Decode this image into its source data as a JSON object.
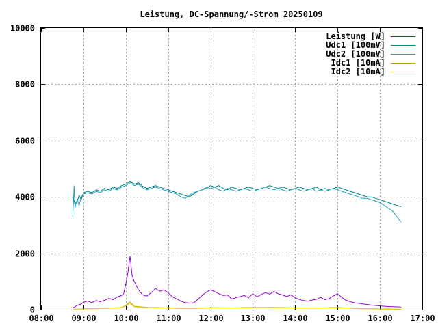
{
  "chart_data": {
    "type": "line",
    "title": "Leistung, DC-Spannung/-Strom 20250109",
    "xlabel": "",
    "ylabel": "",
    "xlim": [
      8.0,
      17.0
    ],
    "ylim": [
      0,
      10000
    ],
    "x_ticks": [
      "08:00",
      "09:00",
      "10:00",
      "11:00",
      "12:00",
      "13:00",
      "14:00",
      "15:00",
      "16:00",
      "17:00"
    ],
    "y_ticks": [
      "0",
      "2000",
      "4000",
      "6000",
      "8000",
      "10000"
    ],
    "grid": true,
    "legend_position": "top-right",
    "series": [
      {
        "name": "Leistung [W]",
        "color": "#9400d3",
        "x": [
          8.75,
          8.85,
          8.95,
          9.0,
          9.1,
          9.2,
          9.3,
          9.4,
          9.5,
          9.6,
          9.7,
          9.8,
          9.9,
          9.95,
          10.0,
          10.05,
          10.1,
          10.15,
          10.2,
          10.3,
          10.4,
          10.5,
          10.6,
          10.7,
          10.8,
          10.9,
          11.0,
          11.1,
          11.2,
          11.3,
          11.4,
          11.5,
          11.6,
          11.7,
          11.8,
          11.9,
          12.0,
          12.1,
          12.2,
          12.3,
          12.4,
          12.5,
          12.6,
          12.7,
          12.8,
          12.9,
          13.0,
          13.1,
          13.2,
          13.3,
          13.4,
          13.5,
          13.6,
          13.7,
          13.8,
          13.9,
          14.0,
          14.1,
          14.2,
          14.3,
          14.4,
          14.5,
          14.6,
          14.7,
          14.8,
          14.9,
          15.0,
          15.1,
          15.2,
          15.3,
          15.4,
          15.5,
          15.6,
          15.7,
          15.8,
          16.0,
          16.2,
          16.5
        ],
        "values": [
          50,
          150,
          200,
          260,
          300,
          250,
          320,
          280,
          330,
          400,
          350,
          450,
          500,
          560,
          900,
          1300,
          1900,
          1200,
          1000,
          700,
          520,
          480,
          600,
          750,
          650,
          700,
          600,
          450,
          380,
          300,
          250,
          230,
          240,
          360,
          500,
          620,
          700,
          640,
          560,
          500,
          520,
          380,
          420,
          460,
          500,
          420,
          560,
          450,
          540,
          600,
          550,
          640,
          560,
          520,
          460,
          520,
          420,
          360,
          320,
          300,
          340,
          360,
          440,
          350,
          390,
          480,
          560,
          430,
          330,
          280,
          240,
          220,
          200,
          180,
          160,
          130,
          110,
          90
        ]
      },
      {
        "name": "Udc1 [100mV]",
        "color": "#008080",
        "x": [
          8.75,
          8.8,
          8.85,
          8.9,
          8.95,
          9.0,
          9.1,
          9.2,
          9.3,
          9.4,
          9.5,
          9.6,
          9.7,
          9.8,
          9.9,
          10.0,
          10.1,
          10.2,
          10.3,
          10.4,
          10.5,
          10.6,
          10.7,
          10.8,
          10.9,
          11.0,
          11.1,
          11.2,
          11.3,
          11.4,
          11.5,
          11.6,
          11.7,
          11.8,
          11.9,
          12.0,
          12.1,
          12.2,
          12.3,
          12.4,
          12.5,
          12.6,
          12.7,
          12.8,
          12.9,
          13.0,
          13.1,
          13.2,
          13.3,
          13.4,
          13.5,
          13.6,
          13.7,
          13.8,
          13.9,
          14.0,
          14.1,
          14.2,
          14.3,
          14.4,
          14.5,
          14.6,
          14.7,
          14.8,
          14.9,
          15.0,
          15.1,
          15.2,
          15.3,
          15.4,
          15.5,
          15.6,
          15.7,
          15.8,
          15.9,
          16.0,
          16.1,
          16.2,
          16.3,
          16.4,
          16.5
        ],
        "values": [
          4000,
          3750,
          3850,
          4050,
          3900,
          4150,
          4200,
          4150,
          4250,
          4200,
          4300,
          4250,
          4350,
          4300,
          4400,
          4450,
          4550,
          4450,
          4500,
          4380,
          4300,
          4350,
          4400,
          4350,
          4300,
          4250,
          4200,
          4150,
          4100,
          4050,
          4000,
          4100,
          4200,
          4250,
          4300,
          4400,
          4350,
          4400,
          4300,
          4250,
          4350,
          4300,
          4250,
          4300,
          4350,
          4300,
          4250,
          4300,
          4350,
          4400,
          4350,
          4300,
          4350,
          4300,
          4250,
          4300,
          4350,
          4300,
          4250,
          4300,
          4350,
          4250,
          4300,
          4250,
          4300,
          4350,
          4300,
          4250,
          4200,
          4150,
          4100,
          4050,
          4000,
          4000,
          3950,
          3900,
          3850,
          3800,
          3750,
          3700,
          3650
        ]
      },
      {
        "name": "Udc2 [100mV]",
        "color": "#1ea0bc",
        "x": [
          8.75,
          8.78,
          8.8,
          8.85,
          8.9,
          8.95,
          9.0,
          9.1,
          9.2,
          9.3,
          9.4,
          9.5,
          9.6,
          9.7,
          9.8,
          9.9,
          10.0,
          10.1,
          10.2,
          10.3,
          10.4,
          10.5,
          10.6,
          10.7,
          10.8,
          10.9,
          11.0,
          11.1,
          11.2,
          11.3,
          11.4,
          11.5,
          11.6,
          11.7,
          11.8,
          11.9,
          12.0,
          12.1,
          12.2,
          12.3,
          12.4,
          12.5,
          12.6,
          12.7,
          12.8,
          12.9,
          13.0,
          13.1,
          13.2,
          13.3,
          13.4,
          13.5,
          13.6,
          13.7,
          13.8,
          13.9,
          14.0,
          14.1,
          14.2,
          14.3,
          14.4,
          14.5,
          14.6,
          14.7,
          14.8,
          14.9,
          15.0,
          15.1,
          15.2,
          15.3,
          15.4,
          15.5,
          15.6,
          15.7,
          15.8,
          15.9,
          16.0,
          16.1,
          16.2,
          16.3,
          16.4,
          16.5
        ],
        "values": [
          3300,
          4400,
          3600,
          3900,
          3700,
          4000,
          4100,
          4150,
          4100,
          4200,
          4150,
          4250,
          4200,
          4300,
          4250,
          4350,
          4400,
          4500,
          4400,
          4450,
          4330,
          4250,
          4300,
          4350,
          4300,
          4250,
          4200,
          4150,
          4100,
          4000,
          3950,
          4050,
          4150,
          4200,
          4250,
          4350,
          4300,
          4350,
          4250,
          4200,
          4300,
          4250,
          4200,
          4250,
          4300,
          4250,
          4200,
          4250,
          4300,
          4350,
          4300,
          4250,
          4300,
          4250,
          4200,
          4250,
          4300,
          4250,
          4200,
          4250,
          4300,
          4200,
          4250,
          4200,
          4250,
          4300,
          4250,
          4200,
          4150,
          4100,
          4050,
          4000,
          3950,
          3950,
          3900,
          3850,
          3800,
          3700,
          3600,
          3500,
          3300,
          3100
        ]
      },
      {
        "name": "Idc1 [10mA]",
        "color": "#c8a000",
        "x": [
          8.75,
          9.0,
          9.5,
          9.9,
          10.0,
          10.1,
          10.2,
          10.5,
          11.0,
          11.5,
          12.0,
          12.5,
          13.0,
          13.5,
          14.0,
          14.5,
          15.0,
          15.5,
          16.0,
          16.5
        ],
        "values": [
          10,
          30,
          45,
          70,
          150,
          270,
          120,
          80,
          60,
          40,
          70,
          60,
          75,
          80,
          60,
          55,
          75,
          40,
          25,
          15
        ]
      },
      {
        "name": "Idc2 [10mA]",
        "color": "#e8d000",
        "x": [
          8.75,
          9.0,
          9.5,
          9.9,
          10.0,
          10.1,
          10.2,
          10.5,
          11.0,
          11.5,
          12.0,
          12.5,
          13.0,
          13.5,
          14.0,
          14.5,
          15.0,
          15.5,
          16.0,
          16.5
        ],
        "values": [
          10,
          25,
          40,
          60,
          130,
          230,
          100,
          70,
          50,
          35,
          60,
          55,
          65,
          70,
          55,
          50,
          65,
          35,
          20,
          10
        ]
      }
    ]
  }
}
